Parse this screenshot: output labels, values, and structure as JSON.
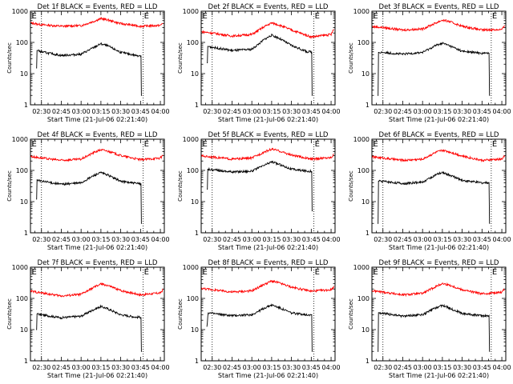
{
  "figure": {
    "panels": [
      {
        "title": "Det 1f BLACK = Events, RED = LLD",
        "xlabel": "Start Time (21-Jul-06 02:21:40)",
        "ylabel": "Counts/sec"
      },
      {
        "title": "Det 2f BLACK = Events, RED = LLD",
        "xlabel": "Start Time (21-Jul-06 02:21:40)",
        "ylabel": "Counts/sec"
      },
      {
        "title": "Det 3f BLACK = Events, RED = LLD",
        "xlabel": "Start Time (21-Jul-06 02:21:40)",
        "ylabel": "Counts/sec"
      },
      {
        "title": "Det 4f BLACK = Events, RED = LLD",
        "xlabel": "Start Time (21-Jul-06 02:21:40)",
        "ylabel": "Counts/sec"
      },
      {
        "title": "Det 5f BLACK = Events, RED = LLD",
        "xlabel": "Start Time (21-Jul-06 02:21:40)",
        "ylabel": "Counts/sec"
      },
      {
        "title": "Det 6f BLACK = Events, RED = LLD",
        "xlabel": "Start Time (21-Jul-06 02:21:40)",
        "ylabel": "Counts/sec"
      },
      {
        "title": "Det 7f BLACK = Events, RED = LLD",
        "xlabel": "Start Time (21-Jul-06 02:21:40)",
        "ylabel": "Counts/sec"
      },
      {
        "title": "Det 8f BLACK = Events, RED = LLD",
        "xlabel": "Start Time (21-Jul-06 02:21:40)",
        "ylabel": "Counts/sec"
      },
      {
        "title": "Det 9f BLACK = Events, RED = LLD",
        "xlabel": "Start Time (21-Jul-06 02:21:40)",
        "ylabel": "Counts/sec"
      }
    ]
  },
  "chart_data": [
    {
      "type": "line",
      "title": "Det 1f BLACK = Events, RED = LLD",
      "xlabel": "Start Time (21-Jul-06 02:21:40)",
      "ylabel": "Counts/sec",
      "xlim": [
        "02:21:40",
        "04:03:00"
      ],
      "ylim": [
        1,
        1000
      ],
      "yscale": "log",
      "xticks": [
        "02:30",
        "02:45",
        "03:00",
        "03:15",
        "03:30",
        "03:45",
        "04:00"
      ],
      "yticks": [
        "1",
        "10",
        "100",
        "1000"
      ],
      "markers": [
        {
          "label": "E",
          "x": "02:22"
        },
        {
          "label": "E",
          "x": "03:47"
        }
      ],
      "dotted_lines": [
        "02:30",
        "03:47"
      ],
      "series": [
        {
          "color": "#ff0000",
          "x": [
            "02:22",
            "02:30",
            "02:45",
            "03:00",
            "03:10",
            "03:15",
            "03:20",
            "03:30",
            "03:45",
            "04:00",
            "04:02"
          ],
          "values": [
            420,
            370,
            330,
            345,
            480,
            580,
            530,
            400,
            330,
            350,
            420
          ]
        },
        {
          "color": "#000000",
          "x": [
            "02:26",
            "02:27",
            "02:30",
            "02:45",
            "03:00",
            "03:10",
            "03:15",
            "03:20",
            "03:30",
            "03:42",
            "03:45",
            "03:46"
          ],
          "values": [
            15,
            55,
            50,
            38,
            42,
            70,
            90,
            78,
            48,
            38,
            38,
            2
          ]
        }
      ]
    },
    {
      "type": "line",
      "title": "Det 2f BLACK = Events, RED = LLD",
      "xlabel": "Start Time (21-Jul-06 02:21:40)",
      "ylabel": "Counts/sec",
      "xlim": [
        "02:21:40",
        "04:03:00"
      ],
      "ylim": [
        1,
        1000
      ],
      "yscale": "log",
      "xticks": [
        "02:30",
        "02:45",
        "03:00",
        "03:15",
        "03:30",
        "03:45",
        "04:00"
      ],
      "yticks": [
        "1",
        "10",
        "100",
        "1000"
      ],
      "markers": [
        {
          "label": "E",
          "x": "02:22"
        },
        {
          "label": "E",
          "x": "03:47"
        }
      ],
      "dotted_lines": [
        "02:30",
        "03:47"
      ],
      "series": [
        {
          "color": "#ff0000",
          "x": [
            "02:22",
            "02:30",
            "02:45",
            "03:00",
            "03:10",
            "03:15",
            "03:20",
            "03:30",
            "03:45",
            "04:00",
            "04:02"
          ],
          "values": [
            220,
            200,
            160,
            180,
            330,
            420,
            370,
            250,
            150,
            180,
            260
          ]
        },
        {
          "color": "#000000",
          "x": [
            "02:26",
            "02:27",
            "02:30",
            "02:45",
            "03:00",
            "03:10",
            "03:15",
            "03:20",
            "03:30",
            "03:42",
            "03:45",
            "03:46"
          ],
          "values": [
            22,
            75,
            70,
            55,
            60,
            130,
            170,
            140,
            80,
            50,
            50,
            2
          ]
        }
      ]
    },
    {
      "type": "line",
      "title": "Det 3f BLACK = Events, RED = LLD",
      "xlabel": "Start Time (21-Jul-06 02:21:40)",
      "ylabel": "Counts/sec",
      "xlim": [
        "02:21:40",
        "04:03:00"
      ],
      "ylim": [
        1,
        1000
      ],
      "yscale": "log",
      "xticks": [
        "02:30",
        "02:45",
        "03:00",
        "03:15",
        "03:30",
        "03:45",
        "04:00"
      ],
      "yticks": [
        "1",
        "10",
        "100",
        "1000"
      ],
      "markers": [
        {
          "label": "E",
          "x": "02:22"
        },
        {
          "label": "E",
          "x": "03:52"
        }
      ],
      "dotted_lines": [
        "02:30",
        "03:52"
      ],
      "series": [
        {
          "color": "#ff0000",
          "x": [
            "02:22",
            "02:30",
            "02:45",
            "03:00",
            "03:10",
            "03:15",
            "03:20",
            "03:30",
            "03:45",
            "04:00",
            "04:02"
          ],
          "values": [
            320,
            300,
            250,
            270,
            420,
            520,
            470,
            330,
            250,
            260,
            330
          ]
        },
        {
          "color": "#000000",
          "x": [
            "02:26",
            "02:27",
            "02:30",
            "02:45",
            "03:00",
            "03:10",
            "03:15",
            "03:20",
            "03:30",
            "03:45",
            "03:50",
            "03:51"
          ],
          "values": [
            2,
            48,
            48,
            42,
            48,
            80,
            95,
            80,
            52,
            45,
            45,
            2
          ]
        }
      ]
    },
    {
      "type": "line",
      "title": "Det 4f BLACK = Events, RED = LLD",
      "xlabel": "Start Time (21-Jul-06 02:21:40)",
      "ylabel": "Counts/sec",
      "xlim": [
        "02:21:40",
        "04:03:00"
      ],
      "ylim": [
        1,
        1000
      ],
      "yscale": "log",
      "xticks": [
        "02:30",
        "02:45",
        "03:00",
        "03:15",
        "03:30",
        "03:45",
        "04:00"
      ],
      "yticks": [
        "1",
        "10",
        "100",
        "1000"
      ],
      "markers": [
        {
          "label": "E",
          "x": "02:22"
        },
        {
          "label": "E",
          "x": "03:47"
        }
      ],
      "dotted_lines": [
        "02:30",
        "03:47"
      ],
      "series": [
        {
          "color": "#ff0000",
          "x": [
            "02:22",
            "02:30",
            "02:45",
            "03:00",
            "03:10",
            "03:15",
            "03:20",
            "03:30",
            "03:45",
            "04:00",
            "04:02"
          ],
          "values": [
            280,
            250,
            210,
            230,
            380,
            460,
            420,
            300,
            220,
            250,
            310
          ]
        },
        {
          "color": "#000000",
          "x": [
            "02:26",
            "02:27",
            "02:30",
            "02:45",
            "03:00",
            "03:10",
            "03:15",
            "03:20",
            "03:30",
            "03:42",
            "03:45",
            "03:46"
          ],
          "values": [
            12,
            50,
            45,
            36,
            40,
            70,
            85,
            72,
            45,
            38,
            38,
            2
          ]
        }
      ]
    },
    {
      "type": "line",
      "title": "Det 5f BLACK = Events, RED = LLD",
      "xlabel": "Start Time (21-Jul-06 02:21:40)",
      "ylabel": "Counts/sec",
      "xlim": [
        "02:21:40",
        "04:03:00"
      ],
      "ylim": [
        1,
        1000
      ],
      "yscale": "log",
      "xticks": [
        "02:30",
        "02:45",
        "03:00",
        "03:15",
        "03:30",
        "03:45",
        "04:00"
      ],
      "yticks": [
        "1",
        "10",
        "100",
        "1000"
      ],
      "markers": [
        {
          "label": "E",
          "x": "02:22"
        },
        {
          "label": "E",
          "x": "03:47"
        }
      ],
      "dotted_lines": [
        "02:30",
        "03:47"
      ],
      "series": [
        {
          "color": "#ff0000",
          "x": [
            "02:22",
            "02:30",
            "02:45",
            "03:00",
            "03:10",
            "03:15",
            "03:20",
            "03:30",
            "03:45",
            "04:00",
            "04:02"
          ],
          "values": [
            290,
            270,
            230,
            250,
            400,
            480,
            430,
            310,
            230,
            260,
            330
          ]
        },
        {
          "color": "#000000",
          "x": [
            "02:26",
            "02:27",
            "02:30",
            "02:45",
            "03:00",
            "03:10",
            "03:15",
            "03:20",
            "03:30",
            "03:42",
            "03:45",
            "03:46"
          ],
          "values": [
            25,
            110,
            105,
            90,
            95,
            150,
            190,
            160,
            110,
            95,
            95,
            5
          ]
        }
      ]
    },
    {
      "type": "line",
      "title": "Det 6f BLACK = Events, RED = LLD",
      "xlabel": "Start Time (21-Jul-06 02:21:40)",
      "ylabel": "Counts/sec",
      "xlim": [
        "02:21:40",
        "04:03:00"
      ],
      "ylim": [
        1,
        1000
      ],
      "yscale": "log",
      "xticks": [
        "02:30",
        "02:45",
        "03:00",
        "03:15",
        "03:30",
        "03:45",
        "04:00"
      ],
      "yticks": [
        "1",
        "10",
        "100",
        "1000"
      ],
      "markers": [
        {
          "label": "E",
          "x": "02:22"
        },
        {
          "label": "E",
          "x": "03:52"
        }
      ],
      "dotted_lines": [
        "02:30",
        "03:52"
      ],
      "series": [
        {
          "color": "#ff0000",
          "x": [
            "02:22",
            "02:30",
            "02:45",
            "03:00",
            "03:10",
            "03:15",
            "03:20",
            "03:30",
            "03:45",
            "04:00",
            "04:02"
          ],
          "values": [
            270,
            250,
            210,
            230,
            380,
            440,
            400,
            290,
            210,
            230,
            290
          ]
        },
        {
          "color": "#000000",
          "x": [
            "02:26",
            "02:27",
            "02:30",
            "02:45",
            "03:00",
            "03:10",
            "03:15",
            "03:20",
            "03:30",
            "03:45",
            "03:50",
            "03:51"
          ],
          "values": [
            2,
            45,
            45,
            38,
            42,
            72,
            85,
            72,
            48,
            40,
            40,
            2
          ]
        }
      ]
    },
    {
      "type": "line",
      "title": "Det 7f BLACK = Events, RED = LLD",
      "xlabel": "Start Time (21-Jul-06 02:21:40)",
      "ylabel": "Counts/sec",
      "xlim": [
        "02:21:40",
        "04:03:00"
      ],
      "ylim": [
        1,
        1000
      ],
      "yscale": "log",
      "xticks": [
        "02:30",
        "02:45",
        "03:00",
        "03:15",
        "03:30",
        "03:45",
        "04:00"
      ],
      "yticks": [
        "1",
        "10",
        "100",
        "1000"
      ],
      "markers": [
        {
          "label": "E",
          "x": "02:22"
        },
        {
          "label": "E",
          "x": "03:47"
        }
      ],
      "dotted_lines": [
        "02:30",
        "03:47"
      ],
      "series": [
        {
          "color": "#ff0000",
          "x": [
            "02:22",
            "02:30",
            "02:45",
            "03:00",
            "03:10",
            "03:15",
            "03:20",
            "03:30",
            "03:45",
            "04:00",
            "04:02"
          ],
          "values": [
            170,
            150,
            120,
            135,
            230,
            290,
            260,
            180,
            130,
            150,
            190
          ]
        },
        {
          "color": "#000000",
          "x": [
            "02:26",
            "02:27",
            "02:30",
            "02:45",
            "03:00",
            "03:10",
            "03:15",
            "03:20",
            "03:30",
            "03:42",
            "03:45",
            "03:46"
          ],
          "values": [
            10,
            32,
            30,
            24,
            27,
            45,
            55,
            47,
            30,
            25,
            25,
            2
          ]
        }
      ]
    },
    {
      "type": "line",
      "title": "Det 8f BLACK = Events, RED = LLD",
      "xlabel": "Start Time (21-Jul-06 02:21:40)",
      "ylabel": "Counts/sec",
      "xlim": [
        "02:21:40",
        "04:03:00"
      ],
      "ylim": [
        1,
        1000
      ],
      "yscale": "log",
      "xticks": [
        "02:30",
        "02:45",
        "03:00",
        "03:15",
        "03:30",
        "03:45",
        "04:00"
      ],
      "yticks": [
        "1",
        "10",
        "100",
        "1000"
      ],
      "markers": [
        {
          "label": "E",
          "x": "02:22"
        },
        {
          "label": "E",
          "x": "03:47"
        }
      ],
      "dotted_lines": [
        "02:30",
        "03:47"
      ],
      "series": [
        {
          "color": "#ff0000",
          "x": [
            "02:22",
            "02:30",
            "02:45",
            "03:00",
            "03:10",
            "03:15",
            "03:20",
            "03:30",
            "03:45",
            "04:00",
            "04:02"
          ],
          "values": [
            210,
            190,
            160,
            175,
            290,
            360,
            320,
            230,
            170,
            190,
            240
          ]
        },
        {
          "color": "#000000",
          "x": [
            "02:26",
            "02:27",
            "02:30",
            "02:45",
            "03:00",
            "03:10",
            "03:15",
            "03:20",
            "03:30",
            "03:42",
            "03:45",
            "03:46"
          ],
          "values": [
            12,
            35,
            33,
            28,
            30,
            50,
            62,
            52,
            34,
            30,
            30,
            2
          ]
        }
      ]
    },
    {
      "type": "line",
      "title": "Det 9f BLACK = Events, RED = LLD",
      "xlabel": "Start Time (21-Jul-06 02:21:40)",
      "ylabel": "Counts/sec",
      "xlim": [
        "02:21:40",
        "04:03:00"
      ],
      "ylim": [
        1,
        1000
      ],
      "yscale": "log",
      "xticks": [
        "02:30",
        "02:45",
        "03:00",
        "03:15",
        "03:30",
        "03:45",
        "04:00"
      ],
      "yticks": [
        "1",
        "10",
        "100",
        "1000"
      ],
      "markers": [
        {
          "label": "E",
          "x": "02:22"
        },
        {
          "label": "E",
          "x": "03:52"
        }
      ],
      "dotted_lines": [
        "02:30",
        "03:52"
      ],
      "series": [
        {
          "color": "#ff0000",
          "x": [
            "02:22",
            "02:30",
            "02:45",
            "03:00",
            "03:10",
            "03:15",
            "03:20",
            "03:30",
            "03:45",
            "04:00",
            "04:02"
          ],
          "values": [
            175,
            160,
            130,
            145,
            240,
            300,
            270,
            190,
            140,
            160,
            200
          ]
        },
        {
          "color": "#000000",
          "x": [
            "02:26",
            "02:27",
            "02:30",
            "02:45",
            "03:00",
            "03:10",
            "03:15",
            "03:20",
            "03:30",
            "03:45",
            "03:50",
            "03:51"
          ],
          "values": [
            2,
            35,
            33,
            27,
            30,
            50,
            60,
            50,
            33,
            28,
            28,
            2
          ]
        }
      ]
    }
  ]
}
